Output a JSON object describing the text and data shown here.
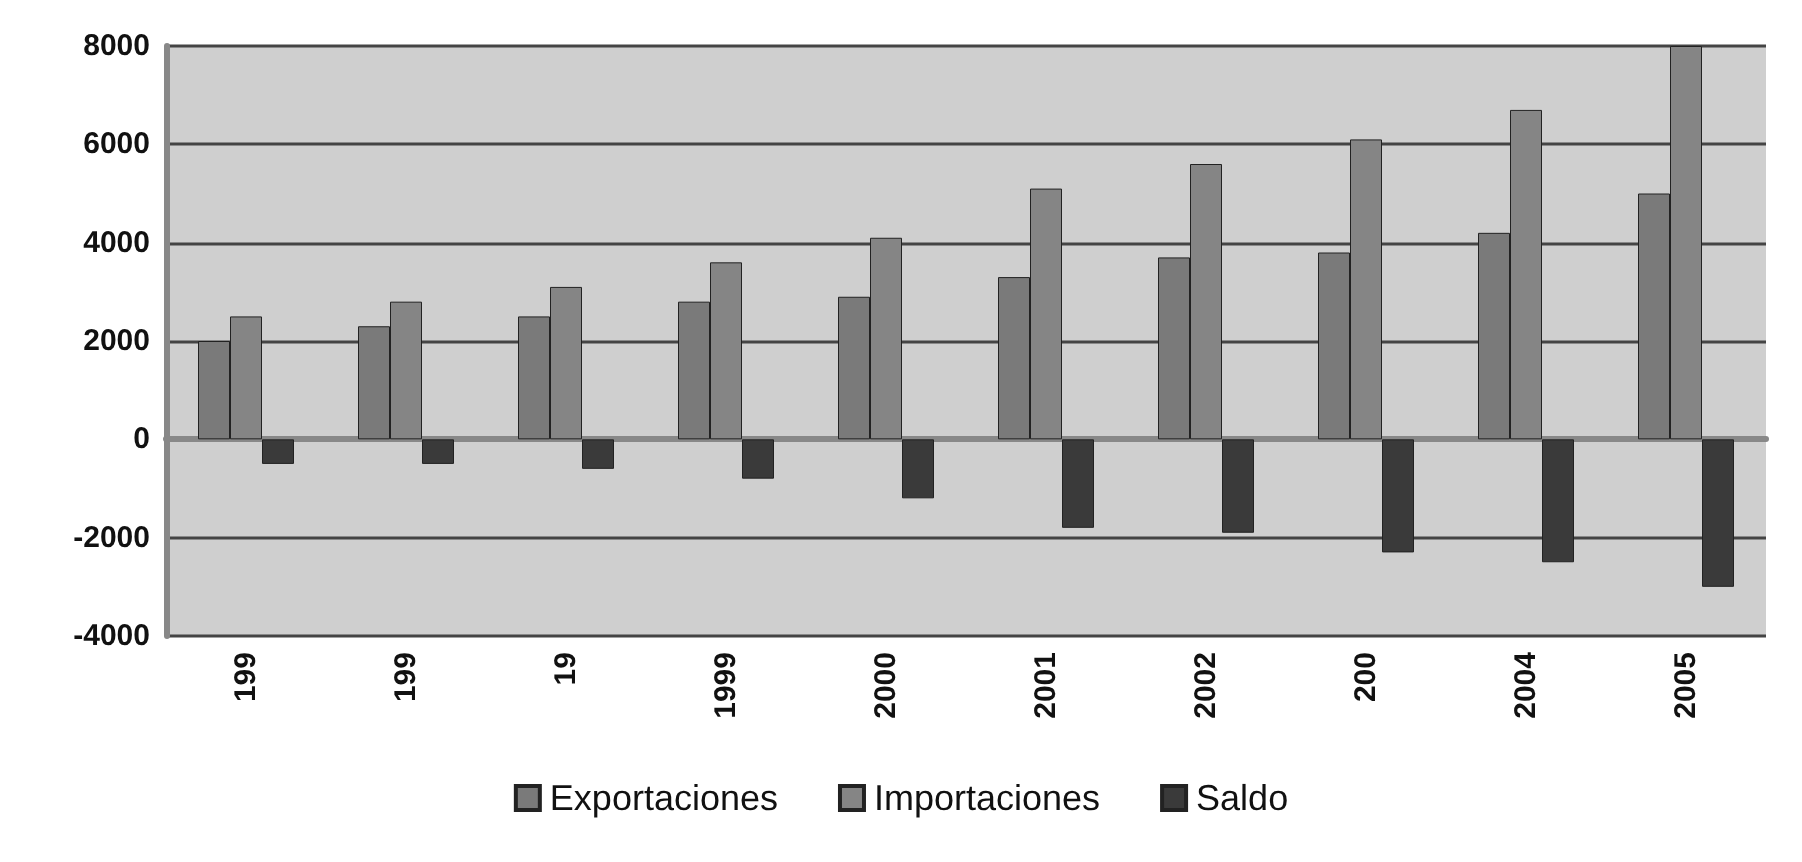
{
  "chart_data": {
    "type": "bar",
    "categories": [
      "199",
      "199",
      "19",
      "1999",
      "2000",
      "2001",
      "2002",
      "200",
      "2004",
      "2005"
    ],
    "series": [
      {
        "name": "Exportaciones",
        "color": "#7a7a7a",
        "values": [
          2000,
          2300,
          2500,
          2800,
          2900,
          3300,
          3700,
          3800,
          4200,
          5000
        ]
      },
      {
        "name": "Importaciones",
        "color": "#858585",
        "values": [
          2500,
          2800,
          3100,
          3600,
          4100,
          5100,
          5600,
          6100,
          6700,
          8000
        ]
      },
      {
        "name": "Saldo",
        "color": "#3a3a3a",
        "values": [
          -500,
          -500,
          -600,
          -800,
          -1200,
          -1800,
          -1900,
          -2300,
          -2500,
          -3000
        ]
      }
    ],
    "ylim": [
      -4000,
      8000
    ],
    "yticks": [
      -4000,
      -2000,
      0,
      2000,
      4000,
      6000,
      8000
    ],
    "grid": "y",
    "legend": "bottom"
  }
}
